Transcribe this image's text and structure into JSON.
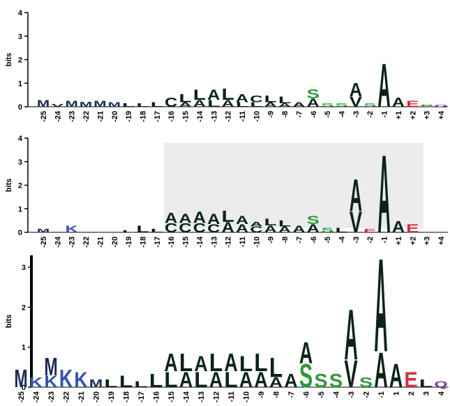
{
  "chart_data": [
    {
      "type": "logo",
      "y_label": "bits",
      "ylim": [
        0,
        4
      ],
      "yticks": [
        0,
        1,
        2,
        3,
        4
      ],
      "categories": [
        "-25",
        "-24",
        "-23",
        "-22",
        "-21",
        "-20",
        "-19",
        "-18",
        "-17",
        "-16",
        "-15",
        "-14",
        "-13",
        "-12",
        "-11",
        "-10",
        "-9",
        "-8",
        "-7",
        "-6",
        "-5",
        "-4",
        "-3",
        "-2",
        "-1",
        "+1",
        "+2",
        "+3",
        "+4"
      ],
      "stacks": [
        [
          {
            "letter": "M",
            "height": 0.3
          }
        ],
        [
          {
            "letter": "V",
            "height": 0.12
          }
        ],
        [
          {
            "letter": "M",
            "height": 0.25
          }
        ],
        [
          {
            "letter": "M",
            "height": 0.22
          }
        ],
        [
          {
            "letter": "M",
            "height": 0.25
          }
        ],
        [
          {
            "letter": "M",
            "height": 0.2
          }
        ],
        [
          {
            "letter": "L",
            "height": 0.15
          }
        ],
        [
          {
            "letter": "L",
            "height": 0.15
          }
        ],
        [
          {
            "letter": "L",
            "height": 0.2
          }
        ],
        [
          {
            "letter": "C",
            "height": 0.4
          }
        ],
        [
          {
            "letter": "A",
            "height": 0.2
          },
          {
            "letter": "L",
            "height": 0.35
          }
        ],
        [
          {
            "letter": "A",
            "height": 0.3
          },
          {
            "letter": "L",
            "height": 0.45
          }
        ],
        [
          {
            "letter": "L",
            "height": 0.3
          },
          {
            "letter": "A",
            "height": 0.45
          }
        ],
        [
          {
            "letter": "A",
            "height": 0.3
          },
          {
            "letter": "L",
            "height": 0.5
          }
        ],
        [
          {
            "letter": "L",
            "height": 0.2
          },
          {
            "letter": "A",
            "height": 0.35
          }
        ],
        [
          {
            "letter": "L",
            "height": 0.2
          },
          {
            "letter": "C",
            "height": 0.3
          }
        ],
        [
          {
            "letter": "A",
            "height": 0.2
          },
          {
            "letter": "L",
            "height": 0.3
          }
        ],
        [
          {
            "letter": "A",
            "height": 0.15
          },
          {
            "letter": "L",
            "height": 0.3
          }
        ],
        [
          {
            "letter": "A",
            "height": 0.2
          }
        ],
        [
          {
            "letter": "A",
            "height": 0.35
          },
          {
            "letter": "S",
            "height": 0.4
          }
        ],
        [
          {
            "letter": "S",
            "height": 0.15
          }
        ],
        [
          {
            "letter": "S",
            "height": 0.15
          }
        ],
        [
          {
            "letter": "V",
            "height": 0.45
          },
          {
            "letter": "A",
            "height": 0.6
          }
        ],
        [
          {
            "letter": "S",
            "height": 0.15
          }
        ],
        [
          {
            "letter": "A",
            "height": 1.9
          }
        ],
        [
          {
            "letter": "A",
            "height": 0.4
          }
        ],
        [
          {
            "letter": "E",
            "height": 0.25
          }
        ],
        [
          {
            "letter": "P",
            "height": 0.1
          }
        ],
        [
          {
            "letter": "Q",
            "height": 0.1
          }
        ]
      ]
    },
    {
      "type": "logo",
      "y_label": "bits",
      "ylim": [
        0,
        4
      ],
      "yticks": [
        0,
        1,
        2,
        3,
        4
      ],
      "categories": [
        "-25",
        "-24",
        "-23",
        "-22",
        "-21",
        "-20",
        "-19",
        "-18",
        "-17",
        "-16",
        "-15",
        "-14",
        "-13",
        "-12",
        "-11",
        "-10",
        "-9",
        "-8",
        "-7",
        "-6",
        "-5",
        "-4",
        "-3",
        "-2",
        "-1",
        "+1",
        "+2",
        "+3",
        "+4"
      ],
      "stacks": [
        [
          {
            "letter": "M",
            "height": 0.15
          }
        ],
        [],
        [
          {
            "letter": "K",
            "height": 0.3
          }
        ],
        [],
        [],
        [],
        [
          {
            "letter": "L",
            "height": 0.1
          }
        ],
        [
          {
            "letter": "L",
            "height": 0.3
          }
        ],
        [
          {
            "letter": "L",
            "height": 0.15
          }
        ],
        [
          {
            "letter": "C",
            "height": 0.4
          },
          {
            "letter": "A",
            "height": 0.45
          }
        ],
        [
          {
            "letter": "C",
            "height": 0.4
          },
          {
            "letter": "A",
            "height": 0.4
          }
        ],
        [
          {
            "letter": "C",
            "height": 0.4
          },
          {
            "letter": "A",
            "height": 0.5
          }
        ],
        [
          {
            "letter": "C",
            "height": 0.35
          },
          {
            "letter": "A",
            "height": 0.45
          }
        ],
        [
          {
            "letter": "A",
            "height": 0.45
          },
          {
            "letter": "L",
            "height": 0.5
          }
        ],
        [
          {
            "letter": "A",
            "height": 0.35
          },
          {
            "letter": "A",
            "height": 0.35
          }
        ],
        [
          {
            "letter": "C",
            "height": 0.25
          },
          {
            "letter": "A",
            "height": 0.2
          }
        ],
        [
          {
            "letter": "A",
            "height": 0.3
          },
          {
            "letter": "L",
            "height": 0.3
          }
        ],
        [
          {
            "letter": "A",
            "height": 0.25
          },
          {
            "letter": "L",
            "height": 0.25
          }
        ],
        [
          {
            "letter": "A",
            "height": 0.3
          }
        ],
        [
          {
            "letter": "A",
            "height": 0.35
          },
          {
            "letter": "S",
            "height": 0.35
          }
        ],
        [
          {
            "letter": "S",
            "height": 0.2
          }
        ],
        [
          {
            "letter": "L",
            "height": 0.2
          }
        ],
        [
          {
            "letter": "V",
            "height": 0.9
          },
          {
            "letter": "A",
            "height": 1.4
          }
        ],
        [
          {
            "letter": "E",
            "height": 0.15
          }
        ],
        [
          {
            "letter": "A",
            "height": 3.4
          }
        ],
        [
          {
            "letter": "A",
            "height": 0.5
          }
        ],
        [
          {
            "letter": "E",
            "height": 0.35
          }
        ],
        [],
        []
      ]
    },
    {
      "type": "logo",
      "y_label": "bits",
      "ylim": [
        0,
        3.3
      ],
      "yticks": [
        0,
        1,
        2,
        3
      ],
      "categories": [
        "-25",
        "-24",
        "-23",
        "-22",
        "-21",
        "-20",
        "-19",
        "-18",
        "-17",
        "-16",
        "-15",
        "-14",
        "-13",
        "-12",
        "-11",
        "-10",
        "-9",
        "-8",
        "-7",
        "-6",
        "-5",
        "-4",
        "-3",
        "-2",
        "-1",
        "1",
        "2",
        "3",
        "4"
      ],
      "stacks": [
        [
          {
            "letter": "M",
            "height": 0.45
          }
        ],
        [
          {
            "letter": "K",
            "height": 0.25
          }
        ],
        [
          {
            "letter": "K",
            "height": 0.3
          },
          {
            "letter": "M",
            "height": 0.45
          }
        ],
        [
          {
            "letter": "K",
            "height": 0.45
          }
        ],
        [
          {
            "letter": "K",
            "height": 0.4
          }
        ],
        [
          {
            "letter": "M",
            "height": 0.2
          }
        ],
        [
          {
            "letter": "L",
            "height": 0.2
          }
        ],
        [
          {
            "letter": "L",
            "height": 0.3
          }
        ],
        [
          {
            "letter": "L",
            "height": 0.15
          }
        ],
        [
          {
            "letter": "L",
            "height": 0.35
          }
        ],
        [
          {
            "letter": "L",
            "height": 0.4
          },
          {
            "letter": "A",
            "height": 0.45
          }
        ],
        [
          {
            "letter": "A",
            "height": 0.4
          },
          {
            "letter": "L",
            "height": 0.45
          }
        ],
        [
          {
            "letter": "L",
            "height": 0.4
          },
          {
            "letter": "A",
            "height": 0.4
          }
        ],
        [
          {
            "letter": "A",
            "height": 0.4
          },
          {
            "letter": "L",
            "height": 0.45
          }
        ],
        [
          {
            "letter": "L",
            "height": 0.4
          },
          {
            "letter": "A",
            "height": 0.45
          }
        ],
        [
          {
            "letter": "A",
            "height": 0.4
          },
          {
            "letter": "L",
            "height": 0.4
          }
        ],
        [
          {
            "letter": "A",
            "height": 0.4
          },
          {
            "letter": "L",
            "height": 0.45
          }
        ],
        [
          {
            "letter": "A",
            "height": 0.25
          },
          {
            "letter": "L",
            "height": 0.5
          }
        ],
        [
          {
            "letter": "A",
            "height": 0.35
          }
        ],
        [
          {
            "letter": "S",
            "height": 0.6
          },
          {
            "letter": "A",
            "height": 0.55
          }
        ],
        [
          {
            "letter": "S",
            "height": 0.35
          }
        ],
        [
          {
            "letter": "S",
            "height": 0.35
          }
        ],
        [
          {
            "letter": "V",
            "height": 0.7
          },
          {
            "letter": "A",
            "height": 1.3
          }
        ],
        [
          {
            "letter": "S",
            "height": 0.25
          }
        ],
        [
          {
            "letter": "A",
            "height": 0.9
          },
          {
            "letter": "A",
            "height": 2.4
          }
        ],
        [
          {
            "letter": "A",
            "height": 0.6
          }
        ],
        [
          {
            "letter": "E",
            "height": 0.4
          }
        ],
        [
          {
            "letter": "L",
            "height": 0.2
          }
        ],
        [
          {
            "letter": "Q",
            "height": 0.15
          }
        ]
      ]
    }
  ],
  "colors": {
    "A": "#0c2418",
    "L": "#0c2418",
    "V": "#0c2418",
    "C": "#0c2418",
    "M": "#1b2a55",
    "K": "#3355aa",
    "S": "#2e9a3a",
    "E": "#d03040",
    "P": "#2e9a3a",
    "Q": "#7a3a9a"
  }
}
